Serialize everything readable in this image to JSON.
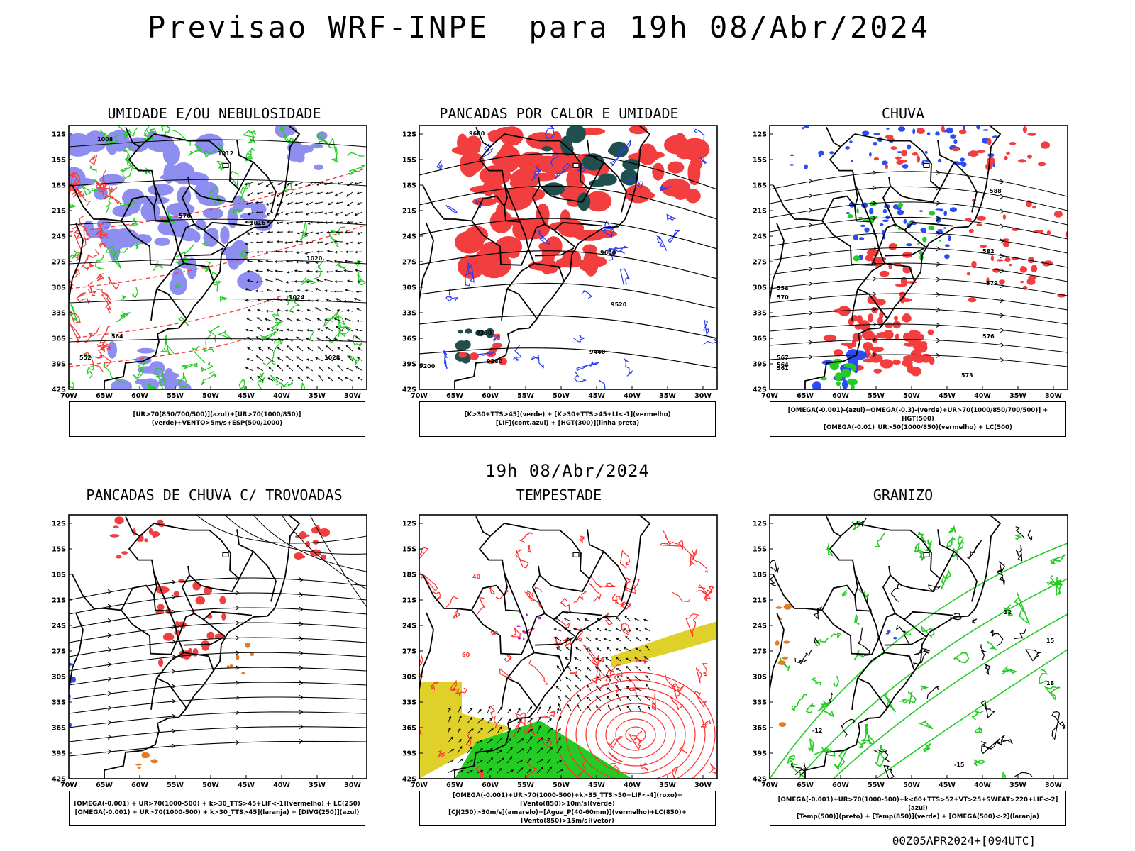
{
  "header": {
    "title": "Previsao WRF-INPE  para 19h 08/Abr/2024",
    "date_label": "19h 08/Abr/2024",
    "run_code": "00Z05APR2024+[094UTC]"
  },
  "axes": {
    "lat_ticks": [
      "12S",
      "15S",
      "18S",
      "21S",
      "24S",
      "27S",
      "30S",
      "33S",
      "36S",
      "39S",
      "42S"
    ],
    "lon_ticks": [
      "70W",
      "65W",
      "60W",
      "55W",
      "50W",
      "45W",
      "40W",
      "35W",
      "30W"
    ]
  },
  "colors": {
    "blue": "#8e8ef0",
    "green": "#22cc22",
    "red": "#f23e3e",
    "dark_teal": "#1f4f4f",
    "orange": "#e57a1e",
    "yellow": "#e0d12a",
    "purple": "#a020c0"
  },
  "panels": [
    {
      "title": "UMIDADE E/OU NEBULOSIDADE",
      "caption": [
        "[UR>70(850/700/500)](azul)+[UR>70(1000/850)](verde)+VENTO>5m/s+ESP(500/1000)"
      ],
      "contour_labels": [
        "1008",
        "1012",
        "1016",
        "1020",
        "1024",
        "1028",
        "576",
        "564",
        "552"
      ]
    },
    {
      "title": "PANCADAS POR CALOR E UMIDADE",
      "caption": [
        "[K>30+TTS>45](verde) + [K>30+TTS>45+LI<-1](vermelho)",
        "[LIF](cont.azul) + [HGT(300)](linha preta)"
      ],
      "contour_labels": [
        "9680",
        "9600",
        "9520",
        "9440",
        "9360",
        "9280",
        "9200"
      ]
    },
    {
      "title": "CHUVA",
      "caption": [
        "[OMEGA(-0.001)-(azul)+OMEGA(-0.3)-(verde)+UR>70(1000/850/700/500)] + HGT(500)",
        "[OMEGA(-0.01)_UR>50(1000/850)(vermelho) + LC(500)"
      ],
      "contour_labels": [
        "588",
        "582",
        "579",
        "576",
        "573",
        "570",
        "567",
        "564",
        "561",
        "558"
      ]
    },
    {
      "title": "PANCADAS DE CHUVA C/ TROVOADAS",
      "caption": [
        "[OMEGA(-0.001) + UR>70(1000-500) + k>30_TTS>45+LIF<-1](vermelho) + LC(250)",
        "[OMEGA(-0.001) + UR>70(1000-500) + k>30_TTS>45](laranja) + [DIVG(250)](azul)"
      ],
      "contour_labels": []
    },
    {
      "title": "TEMPESTADE",
      "caption": [
        "[OMEGA(-0.001)+UR>70(1000-500)+k>35_TTS>50+LIF<-4](roxo)+[Vento(850)>10m/s](verde)",
        "[CJ(250)>30m/s](amarelo)+[Agua_P(40-60mm)](vermelho)+LC(850)+[Vento(850)>15m/s](vetor)"
      ],
      "contour_labels": [
        "40",
        "50",
        "60"
      ]
    },
    {
      "title": "GRANIZO",
      "caption": [
        "[OMEGA(-0.001)+UR>70(1000-500)+k<60+TTS>52+VT>25+SWEAT>220+LIF<-2](azul)",
        "[Temp(500)](preto) + [Temp(850)](verde) + [OMEGA(500)<-2](laranja)"
      ],
      "contour_labels": [
        "-12",
        "-15",
        "12",
        "15",
        "18"
      ]
    }
  ]
}
